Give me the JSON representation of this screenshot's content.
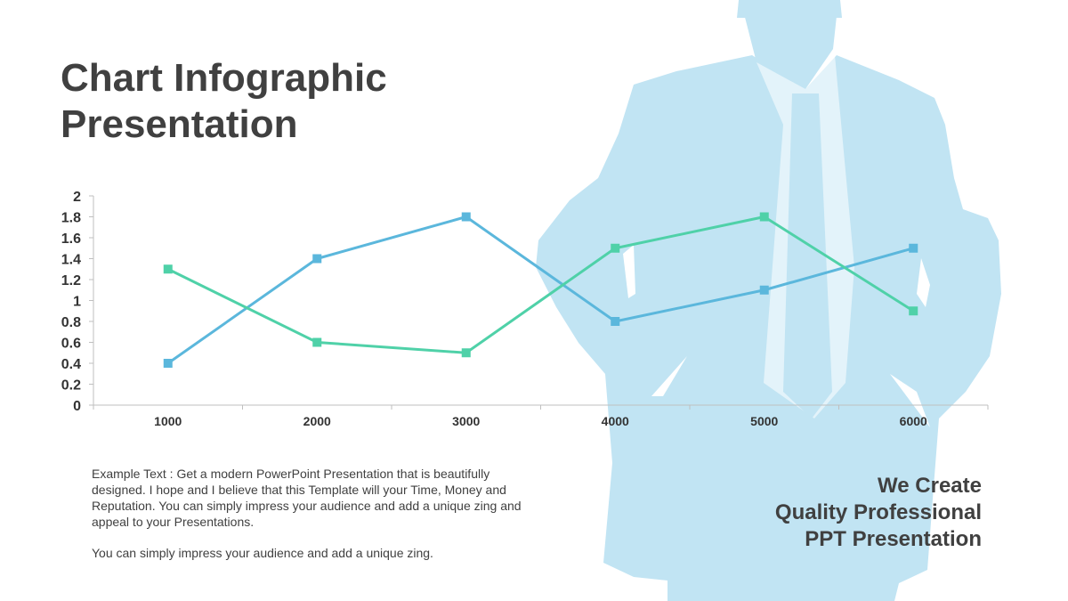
{
  "slide": {
    "title_lines": [
      "Chart Infographic",
      "Presentation"
    ],
    "body_paragraphs": [
      "Example Text : Get a modern PowerPoint  Presentation that is beautifully designed. I hope and I believe that this Template will your Time, Money and Reputation. You can simply impress your audience and add a unique zing and appeal to your Presentations.",
      "You can simply impress your audience and add a unique zing."
    ],
    "tagline_lines": [
      "We Create",
      "Quality Professional",
      "PPT Presentation"
    ],
    "silhouette": "businessman-silhouette",
    "silhouette_color": "#c1e4f3"
  },
  "chart_data": {
    "type": "line",
    "categories": [
      "1000",
      "2000",
      "3000",
      "4000",
      "5000",
      "6000"
    ],
    "series": [
      {
        "values": [
          0.4,
          1.4,
          1.8,
          0.8,
          1.1,
          1.5
        ],
        "color": "#5bb7dc"
      },
      {
        "values": [
          1.3,
          0.6,
          0.5,
          1.5,
          1.8,
          0.9
        ],
        "color": "#4fd1a8"
      }
    ],
    "yticks": [
      "0",
      "0.2",
      "0.4",
      "0.6",
      "0.8",
      "1",
      "1.2",
      "1.4",
      "1.6",
      "1.8",
      "2"
    ],
    "ylim": [
      0,
      2
    ],
    "grid": false,
    "legend": "none",
    "marker": "square"
  }
}
